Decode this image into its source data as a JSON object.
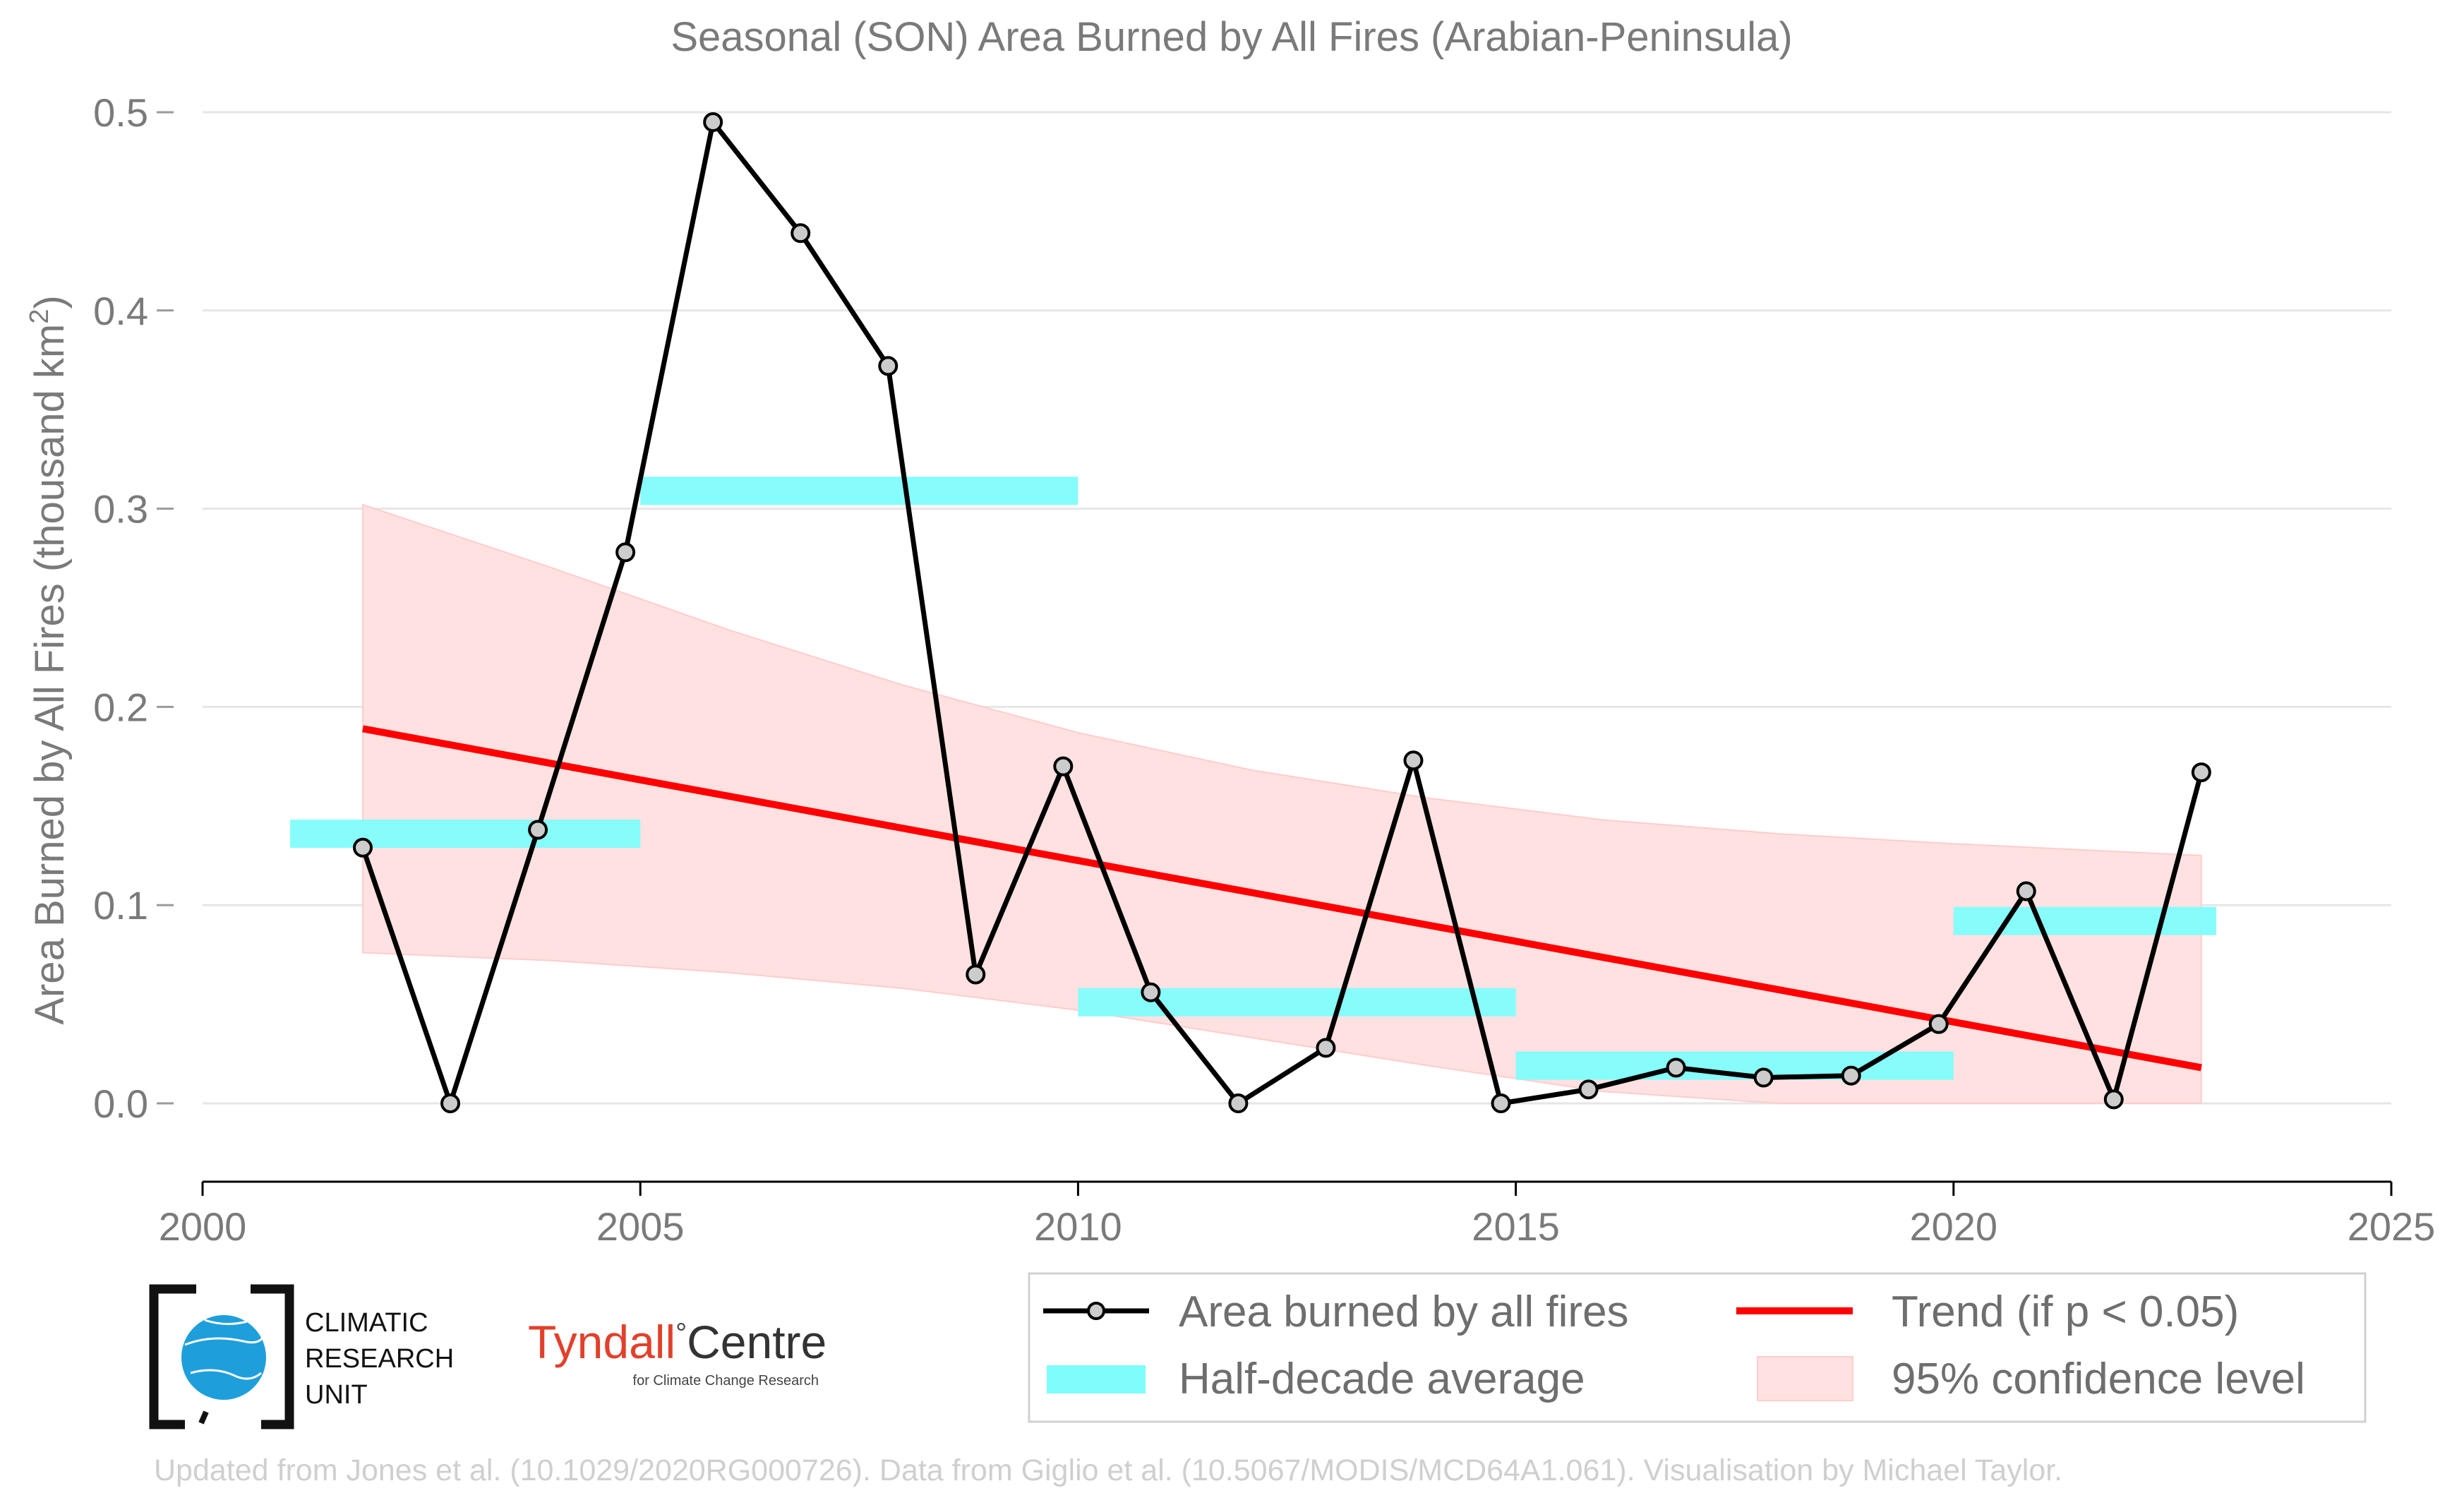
{
  "chart_data": {
    "type": "line",
    "title": "Seasonal (SON) Area Burned by All Fires (Arabian-Peninsula)",
    "xlabel": "",
    "ylabel": "Area Burned by All Fires (thousand km",
    "ylabel_sup": "2",
    "ylabel_end": ")",
    "xlim": [
      2000,
      2025
    ],
    "ylim": [
      -0.04,
      0.52
    ],
    "x_ticks": [
      "2000",
      "2005",
      "2010",
      "2015",
      "2020",
      "2025"
    ],
    "y_ticks": [
      "0.0",
      "0.1",
      "0.2",
      "0.3",
      "0.4",
      "0.5"
    ],
    "grid": "horizontal",
    "legend_position": "bottom-right",
    "series": [
      {
        "name": "Area burned by all fires",
        "color": "#000000",
        "x": [
          2001.83,
          2002.83,
          2003.83,
          2004.83,
          2005.83,
          2006.83,
          2007.83,
          2008.83,
          2009.83,
          2010.83,
          2011.83,
          2012.83,
          2013.83,
          2014.83,
          2015.83,
          2016.83,
          2017.83,
          2018.83,
          2019.83,
          2020.83,
          2021.83,
          2022.83
        ],
        "values": [
          0.129,
          0.0,
          0.138,
          0.278,
          0.495,
          0.439,
          0.372,
          0.065,
          0.17,
          0.056,
          0.0,
          0.028,
          0.173,
          0.0,
          0.007,
          0.018,
          0.013,
          0.014,
          0.04,
          0.107,
          0.002,
          0.167
        ]
      }
    ],
    "half_decade_average": {
      "name": "Half-decade average",
      "color": "#7ffdfc",
      "segments": [
        {
          "x0": 2001.0,
          "x1": 2005.0,
          "value": 0.136
        },
        {
          "x0": 2005.0,
          "x1": 2010.0,
          "value": 0.309
        },
        {
          "x0": 2010.0,
          "x1": 2015.0,
          "value": 0.051
        },
        {
          "x0": 2015.0,
          "x1": 2020.0,
          "value": 0.019
        },
        {
          "x0": 2020.0,
          "x1": 2023.0,
          "value": 0.092
        }
      ]
    },
    "trend": {
      "name": "Trend (if p < 0.05)",
      "color": "#ff0000",
      "x": [
        2001.83,
        2022.83
      ],
      "values": [
        0.189,
        0.018
      ]
    },
    "confidence_band": {
      "name": "95% confidence level",
      "color": "#ffe1e1",
      "x": [
        2001.83,
        2004.0,
        2006.0,
        2008.0,
        2010.0,
        2012.0,
        2014.0,
        2016.0,
        2018.0,
        2020.0,
        2022.83
      ],
      "upper": [
        0.302,
        0.27,
        0.239,
        0.211,
        0.187,
        0.168,
        0.154,
        0.143,
        0.136,
        0.131,
        0.125
      ],
      "lower": [
        0.076,
        0.072,
        0.066,
        0.058,
        0.047,
        0.033,
        0.019,
        0.006,
        0.0,
        0.0,
        0.0
      ]
    }
  },
  "logos": {
    "cru_line1": "CLIMATIC",
    "cru_line2": "RESEARCH",
    "cru_line3": "UNIT",
    "tyndall_name": "Tyndall",
    "tyndall_degree": "°",
    "tyndall_centre": "Centre",
    "tyndall_sub": "for Climate Change Research"
  },
  "footer": "Updated from Jones et al. (10.1029/2020RG000726). Data from Giglio et al. (10.5067/MODIS/MCD64A1.061). Visualisation by Michael Taylor."
}
